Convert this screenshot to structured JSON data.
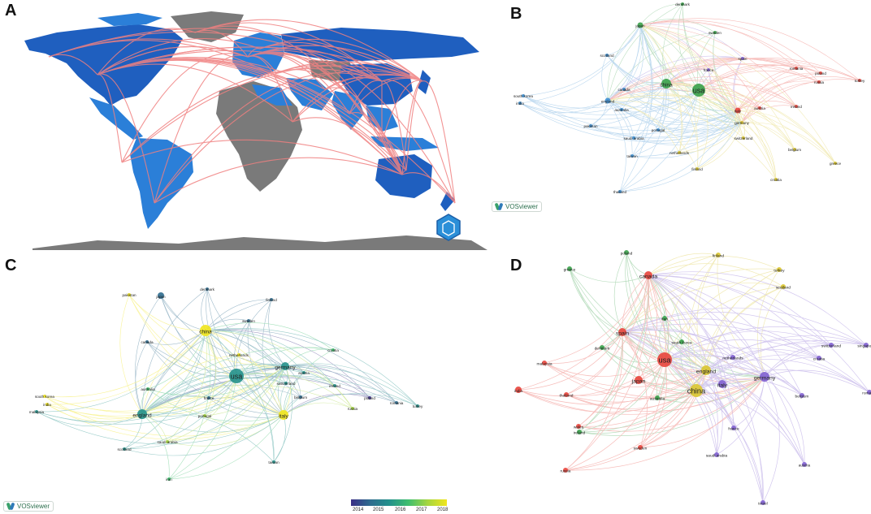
{
  "panel_labels": {
    "a": "A",
    "b": "B",
    "c": "C",
    "d": "D"
  },
  "vosviewer_label": "VOSviewer",
  "colors": {
    "map_dark_blue": "#1f5fbf",
    "map_blue": "#2b7fd8",
    "map_grey": "#7a7a7a",
    "collab_line": "#f08080",
    "cluster_red": "#e8453c",
    "cluster_green": "#3aa14a",
    "cluster_blue": "#3d8fd1",
    "cluster_yellow": "#d9c530",
    "cluster_purple": "#7f5fd0"
  },
  "panel_b": {
    "nodes": [
      {
        "label": "usa",
        "cluster": "green",
        "size": "large"
      },
      {
        "label": "china",
        "cluster": "green",
        "size": "medium"
      },
      {
        "label": "japan",
        "cluster": "green",
        "size": "small"
      },
      {
        "label": "denmark",
        "cluster": "green",
        "size": "tiny"
      },
      {
        "label": "sweden",
        "cluster": "green",
        "size": "tiny"
      },
      {
        "label": "scotland",
        "cluster": "blue",
        "size": "tiny"
      },
      {
        "label": "canada",
        "cluster": "blue",
        "size": "tiny"
      },
      {
        "label": "england",
        "cluster": "blue",
        "size": "small"
      },
      {
        "label": "australia",
        "cluster": "blue",
        "size": "tiny"
      },
      {
        "label": "south korea",
        "cluster": "blue",
        "size": "tiny"
      },
      {
        "label": "india",
        "cluster": "blue",
        "size": "tiny"
      },
      {
        "label": "pakistan",
        "cluster": "blue",
        "size": "tiny"
      },
      {
        "label": "saudi arabia",
        "cluster": "blue",
        "size": "tiny"
      },
      {
        "label": "portugal",
        "cluster": "blue",
        "size": "tiny"
      },
      {
        "label": "taiwan",
        "cluster": "blue",
        "size": "tiny"
      },
      {
        "label": "spain",
        "cluster": "purple",
        "size": "tiny"
      },
      {
        "label": "france",
        "cluster": "purple",
        "size": "tiny"
      },
      {
        "label": "italy",
        "cluster": "red",
        "size": "small"
      },
      {
        "label": "austria",
        "cluster": "red",
        "size": "tiny"
      },
      {
        "label": "ireland",
        "cluster": "red",
        "size": "tiny"
      },
      {
        "label": "poland",
        "cluster": "red",
        "size": "tiny"
      },
      {
        "label": "turkey",
        "cluster": "red",
        "size": "tiny"
      },
      {
        "label": "romania",
        "cluster": "red",
        "size": "tiny"
      },
      {
        "label": "russia",
        "cluster": "red",
        "size": "tiny"
      },
      {
        "label": "germany",
        "cluster": "yellow",
        "size": "tiny"
      },
      {
        "label": "switzerland",
        "cluster": "yellow",
        "size": "tiny"
      },
      {
        "label": "belgium",
        "cluster": "yellow",
        "size": "tiny"
      },
      {
        "label": "netherlands",
        "cluster": "yellow",
        "size": "tiny"
      },
      {
        "label": "finland",
        "cluster": "yellow",
        "size": "tiny"
      },
      {
        "label": "greece",
        "cluster": "yellow",
        "size": "tiny"
      },
      {
        "label": "croatia",
        "cluster": "yellow",
        "size": "tiny"
      },
      {
        "label": "thailand",
        "cluster": "blue",
        "size": "tiny"
      }
    ]
  },
  "panel_c": {
    "nodes": [
      {
        "label": "usa"
      },
      {
        "label": "china"
      },
      {
        "label": "japan"
      },
      {
        "label": "denmark"
      },
      {
        "label": "pakistan"
      },
      {
        "label": "finland"
      },
      {
        "label": "sweden"
      },
      {
        "label": "canada"
      },
      {
        "label": "netherlands"
      },
      {
        "label": "germany"
      },
      {
        "label": "croatia"
      },
      {
        "label": "austria"
      },
      {
        "label": "switzerland"
      },
      {
        "label": "ireland"
      },
      {
        "label": "poland"
      },
      {
        "label": "australia"
      },
      {
        "label": "france"
      },
      {
        "label": "belgium"
      },
      {
        "label": "romania"
      },
      {
        "label": "turkey"
      },
      {
        "label": "russia"
      },
      {
        "label": "south korea"
      },
      {
        "label": "india"
      },
      {
        "label": "malaysia"
      },
      {
        "label": "england"
      },
      {
        "label": "portugal"
      },
      {
        "label": "italy"
      },
      {
        "label": "saudi arabia"
      },
      {
        "label": "scotland"
      },
      {
        "label": "taiwan"
      },
      {
        "label": "iran"
      }
    ],
    "year_scale": [
      "2014",
      "2015",
      "2016",
      "2017",
      "2018"
    ]
  },
  "panel_d": {
    "nodes": [
      {
        "label": "poland"
      },
      {
        "label": "finland"
      },
      {
        "label": "turkey"
      },
      {
        "label": "greece"
      },
      {
        "label": "canada"
      },
      {
        "label": "scotland"
      },
      {
        "label": "iran"
      },
      {
        "label": "spain"
      },
      {
        "label": "south korea"
      },
      {
        "label": "denmark"
      },
      {
        "label": "switzerland"
      },
      {
        "label": "singapore"
      },
      {
        "label": "croatia"
      },
      {
        "label": "netherlands"
      },
      {
        "label": "malaysia"
      },
      {
        "label": "usa"
      },
      {
        "label": "england"
      },
      {
        "label": "japan"
      },
      {
        "label": "italy"
      },
      {
        "label": "germany"
      },
      {
        "label": "romania"
      },
      {
        "label": "china"
      },
      {
        "label": "india"
      },
      {
        "label": "thailand"
      },
      {
        "label": "australia"
      },
      {
        "label": "belgium"
      },
      {
        "label": "france"
      },
      {
        "label": "wales"
      },
      {
        "label": "ireland"
      },
      {
        "label": "sweden"
      },
      {
        "label": "saudi arabia"
      },
      {
        "label": "austria"
      },
      {
        "label": "russia"
      },
      {
        "label": "israel"
      }
    ]
  }
}
